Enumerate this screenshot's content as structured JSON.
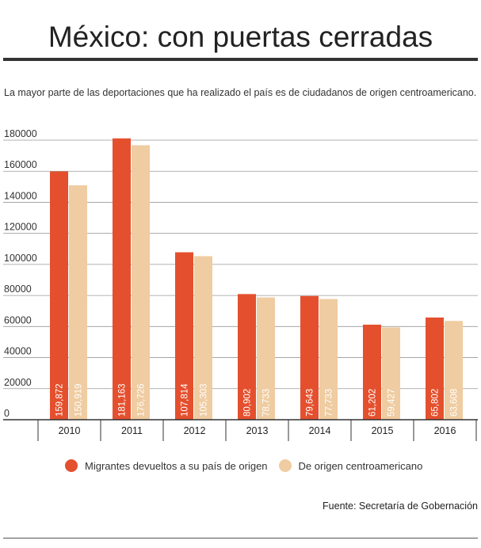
{
  "title": "México: con puertas cerradas",
  "subtitle": "La mayor parte de las deportaciones que ha realizado el país es de ciudadanos de origen centroamericano.",
  "source": "Fuente: Secretaría de Gobernación",
  "colors": {
    "series1": "#e4502e",
    "series2": "#efcca1",
    "grid": "#999999",
    "axis": "#333333"
  },
  "chart_data": {
    "type": "bar",
    "categories": [
      "2010",
      "2011",
      "2012",
      "2013",
      "2014",
      "2015",
      "2016"
    ],
    "series": [
      {
        "name": "Migrantes devueltos a su país de origen",
        "values": [
          159872,
          181163,
          107814,
          80902,
          79643,
          61202,
          65802
        ],
        "labels": [
          "159,872",
          "181,163",
          "107,814",
          "80,902",
          "79,643",
          "61,202",
          "65,802"
        ]
      },
      {
        "name": "De origen centroamericano",
        "values": [
          150919,
          176726,
          105303,
          78733,
          77733,
          59427,
          63608
        ],
        "labels": [
          "150,919",
          "176,726",
          "105,303",
          "78,733",
          "77,733",
          "59,427",
          "63,608"
        ]
      }
    ],
    "ylim": [
      0,
      180000
    ],
    "yticks": [
      0,
      20000,
      40000,
      60000,
      80000,
      100000,
      120000,
      140000,
      160000,
      180000
    ],
    "grid": true,
    "legend": "bottom"
  }
}
